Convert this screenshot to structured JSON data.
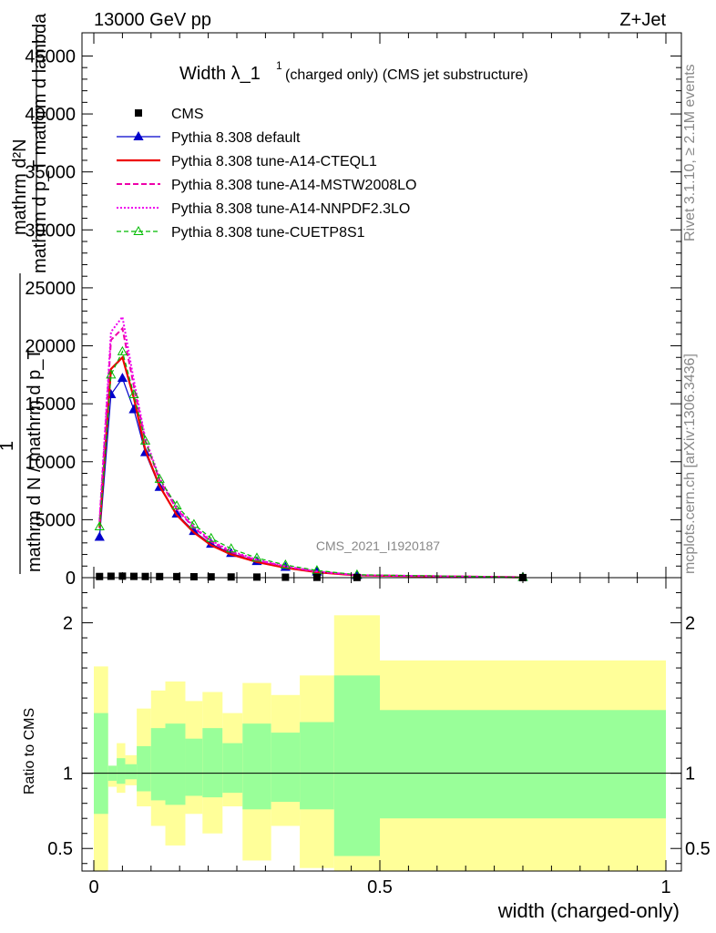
{
  "header": {
    "left": "13000 GeV pp",
    "right": "Z+Jet"
  },
  "main_title": {
    "text": "Width λ_1",
    "sup": "1",
    "suffix": "(charged only) (CMS jet substructure)"
  },
  "side_labels": {
    "rivet": "Rivet 3.1.10, ≥ 2.1M events",
    "mcplots": "mcplots.cern.ch [arXiv:1306.3436]"
  },
  "watermark": "CMS_2021_I1920187",
  "ylabel_main": {
    "numerator": "mathrm d²N",
    "denominator": "mathrm d p_T mathrm d lambda",
    "prefix_num": "1",
    "prefix_den": "mathrm d N / mathrm d p_T",
    "sub_T": "T"
  },
  "ylabel_ratio": "Ratio to CMS",
  "xlabel": "width (charged-only)",
  "chart_data": [
    {
      "type": "line",
      "panel": "main",
      "xlim": [
        0,
        1
      ],
      "ylim": [
        0,
        47000
      ],
      "yticks": [
        0,
        5000,
        10000,
        15000,
        20000,
        25000,
        30000,
        35000,
        40000,
        45000
      ],
      "ytick_labels": [
        "0",
        "5000",
        "10000",
        "15000",
        "20000",
        "25000",
        "30000",
        "35000",
        "40000",
        "45000"
      ],
      "legend_position": "top-left",
      "series": [
        {
          "name": "CMS",
          "style": "cms",
          "x": [
            0.01,
            0.03,
            0.05,
            0.07,
            0.09,
            0.115,
            0.145,
            0.175,
            0.205,
            0.24,
            0.285,
            0.335,
            0.39,
            0.46,
            0.75
          ],
          "y": [
            100,
            120,
            130,
            110,
            100,
            95,
            90,
            80,
            70,
            60,
            50,
            35,
            25,
            15,
            5
          ]
        },
        {
          "name": "Pythia 8.308 default",
          "style": "default",
          "x": [
            0.01,
            0.03,
            0.05,
            0.07,
            0.09,
            0.115,
            0.145,
            0.175,
            0.205,
            0.24,
            0.285,
            0.335,
            0.39,
            0.46,
            0.75
          ],
          "y": [
            3500,
            15800,
            17200,
            14500,
            10800,
            7800,
            5500,
            4000,
            2900,
            2100,
            1400,
            900,
            500,
            200,
            30
          ]
        },
        {
          "name": "Pythia 8.308 tune-A14-CTEQL1",
          "style": "cteq",
          "x": [
            0.01,
            0.03,
            0.05,
            0.07,
            0.09,
            0.115,
            0.145,
            0.175,
            0.205,
            0.24,
            0.285,
            0.335,
            0.39,
            0.46,
            0.75
          ],
          "y": [
            4300,
            18000,
            19000,
            15500,
            11000,
            7900,
            5400,
            3900,
            2800,
            2000,
            1350,
            850,
            470,
            190,
            30
          ]
        },
        {
          "name": "Pythia 8.308 tune-A14-MSTW2008LO",
          "style": "mstw",
          "x": [
            0.01,
            0.03,
            0.05,
            0.07,
            0.09,
            0.115,
            0.145,
            0.175,
            0.205,
            0.24,
            0.285,
            0.335,
            0.39,
            0.46,
            0.75
          ],
          "y": [
            4800,
            20500,
            21500,
            16500,
            11800,
            8400,
            5900,
            4300,
            3100,
            2200,
            1500,
            950,
            520,
            210,
            35
          ]
        },
        {
          "name": "Pythia 8.308 tune-A14-NNPDF2.3LO",
          "style": "nnpdf",
          "x": [
            0.01,
            0.03,
            0.05,
            0.07,
            0.09,
            0.115,
            0.145,
            0.175,
            0.205,
            0.24,
            0.285,
            0.335,
            0.39,
            0.46,
            0.75
          ],
          "y": [
            5000,
            21200,
            22500,
            17000,
            12000,
            8600,
            6000,
            4400,
            3200,
            2300,
            1550,
            980,
            540,
            220,
            35
          ]
        },
        {
          "name": "Pythia 8.308 tune-CUETP8S1",
          "style": "cuet",
          "x": [
            0.01,
            0.03,
            0.05,
            0.07,
            0.09,
            0.115,
            0.145,
            0.175,
            0.205,
            0.24,
            0.285,
            0.335,
            0.39,
            0.46,
            0.75
          ],
          "y": [
            4400,
            17500,
            19500,
            15800,
            11800,
            8500,
            6200,
            4600,
            3400,
            2500,
            1700,
            1100,
            620,
            250,
            40
          ]
        }
      ]
    },
    {
      "type": "area",
      "panel": "ratio",
      "xlim": [
        0,
        1
      ],
      "ylim": [
        0.35,
        2.3
      ],
      "yticks": [
        0.5,
        1,
        2
      ],
      "ytick_labels": [
        "0.5",
        "1",
        "2"
      ],
      "xticks": [
        0,
        0.5,
        1
      ],
      "xtick_labels": [
        "0",
        "0.5",
        "1"
      ],
      "bins": [
        {
          "lo": 0.0,
          "hi": 0.025,
          "outer_lo": 0.35,
          "outer_hi": 1.71,
          "inner_lo": 0.73,
          "inner_hi": 1.4
        },
        {
          "lo": 0.025,
          "hi": 0.04,
          "outer_lo": 0.91,
          "outer_hi": 1.05,
          "inner_lo": 0.95,
          "inner_hi": 1.05
        },
        {
          "lo": 0.04,
          "hi": 0.055,
          "outer_lo": 0.87,
          "outer_hi": 1.2,
          "inner_lo": 0.93,
          "inner_hi": 1.1
        },
        {
          "lo": 0.055,
          "hi": 0.075,
          "outer_lo": 0.92,
          "outer_hi": 1.12,
          "inner_lo": 0.96,
          "inner_hi": 1.06
        },
        {
          "lo": 0.075,
          "hi": 0.1,
          "outer_lo": 0.78,
          "outer_hi": 1.43,
          "inner_lo": 0.88,
          "inner_hi": 1.18
        },
        {
          "lo": 0.1,
          "hi": 0.125,
          "outer_lo": 0.65,
          "outer_hi": 1.55,
          "inner_lo": 0.82,
          "inner_hi": 1.3
        },
        {
          "lo": 0.125,
          "hi": 0.16,
          "outer_lo": 0.52,
          "outer_hi": 1.61,
          "inner_lo": 0.79,
          "inner_hi": 1.33
        },
        {
          "lo": 0.16,
          "hi": 0.19,
          "outer_lo": 0.73,
          "outer_hi": 1.48,
          "inner_lo": 0.85,
          "inner_hi": 1.23
        },
        {
          "lo": 0.19,
          "hi": 0.225,
          "outer_lo": 0.6,
          "outer_hi": 1.54,
          "inner_lo": 0.84,
          "inner_hi": 1.3
        },
        {
          "lo": 0.225,
          "hi": 0.26,
          "outer_lo": 0.78,
          "outer_hi": 1.4,
          "inner_lo": 0.87,
          "inner_hi": 1.2
        },
        {
          "lo": 0.26,
          "hi": 0.31,
          "outer_lo": 0.42,
          "outer_hi": 1.6,
          "inner_lo": 0.76,
          "inner_hi": 1.33
        },
        {
          "lo": 0.31,
          "hi": 0.36,
          "outer_lo": 0.65,
          "outer_hi": 1.52,
          "inner_lo": 0.81,
          "inner_hi": 1.27
        },
        {
          "lo": 0.36,
          "hi": 0.42,
          "outer_lo": 0.37,
          "outer_hi": 1.65,
          "inner_lo": 0.76,
          "inner_hi": 1.34
        },
        {
          "lo": 0.42,
          "hi": 0.5,
          "outer_lo": 0.35,
          "outer_hi": 2.05,
          "inner_lo": 0.45,
          "inner_hi": 1.65
        },
        {
          "lo": 0.5,
          "hi": 1.0,
          "outer_lo": 0.35,
          "outer_hi": 1.75,
          "inner_lo": 0.7,
          "inner_hi": 1.42
        }
      ]
    }
  ],
  "colors": {
    "cms": "#000000",
    "default": "#0000cc",
    "cteq": "#ee0000",
    "mstw": "#ee00aa",
    "nnpdf": "#ee00ee",
    "cuet": "#00bb00",
    "band_outer": "#ffff99",
    "band_inner": "#99ff99",
    "watermark": "#888888"
  }
}
